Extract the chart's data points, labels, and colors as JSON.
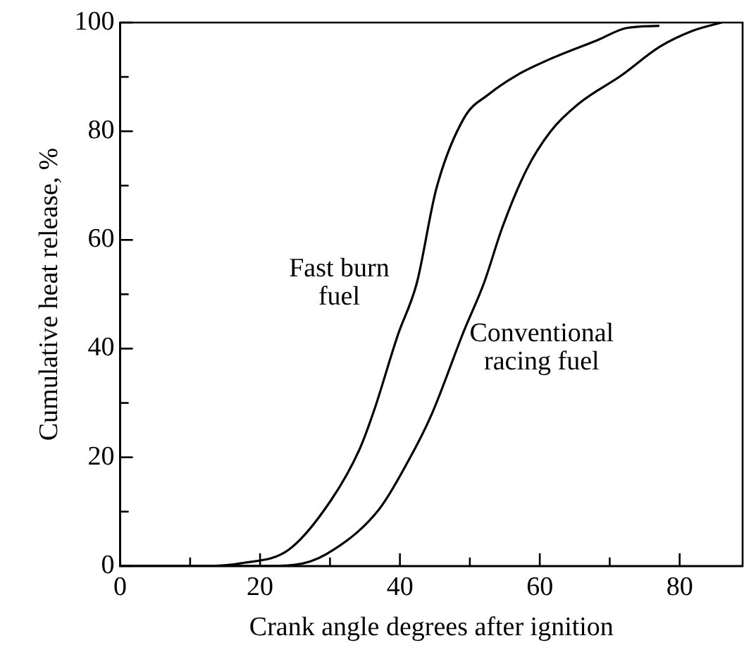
{
  "chart_data": {
    "type": "line",
    "xlabel": "Crank angle degrees after ignition",
    "ylabel": "Cumulative heat release, %",
    "xlim": [
      0,
      89
    ],
    "xticks": [
      0,
      {
        "value": 10,
        "label": null
      },
      20,
      {
        "value": 30,
        "label": null
      },
      40,
      {
        "value": 50,
        "label": null
      },
      60,
      {
        "value": 70,
        "label": null
      },
      80
    ],
    "ylim": [
      0,
      100
    ],
    "yticks": [
      0,
      {
        "value": 10,
        "label": null
      },
      20,
      {
        "value": 30,
        "label": null
      },
      40,
      {
        "value": 50,
        "label": null
      },
      60,
      {
        "value": 70,
        "label": null
      },
      80,
      {
        "value": 90,
        "label": null
      },
      100
    ],
    "grid": false,
    "legend": false,
    "marker": "none",
    "line_style": "solid",
    "series": [
      {
        "name": "Fast burn fuel",
        "color": "#000000",
        "x": [
          0,
          13,
          17.3,
          24.1,
          30.2,
          34.3,
          36.3,
          39.7,
          42.4,
          45.2,
          49.2,
          52.7,
          56.7,
          61.5,
          68.3,
          72.4,
          77.1
        ],
        "values": [
          0,
          0,
          0.5,
          3,
          12.2,
          21.7,
          28.6,
          42.5,
          52,
          69.4,
          82.5,
          86.8,
          90.3,
          93.3,
          96.8,
          99,
          99.4
        ]
      },
      {
        "name": "Conventional racing fuel",
        "color": "#000000",
        "x": [
          0,
          20,
          24.8,
          29.5,
          37,
          41.1,
          44.5,
          49.2,
          52,
          54.7,
          58.1,
          61.5,
          65.6,
          71.7,
          77.1,
          81.9,
          86
        ],
        "values": [
          0,
          0,
          0.2,
          2.2,
          10.4,
          19.1,
          27.8,
          43.4,
          52,
          62.5,
          72.9,
          79.9,
          85.1,
          90.3,
          95.5,
          98.5,
          100
        ]
      }
    ]
  }
}
